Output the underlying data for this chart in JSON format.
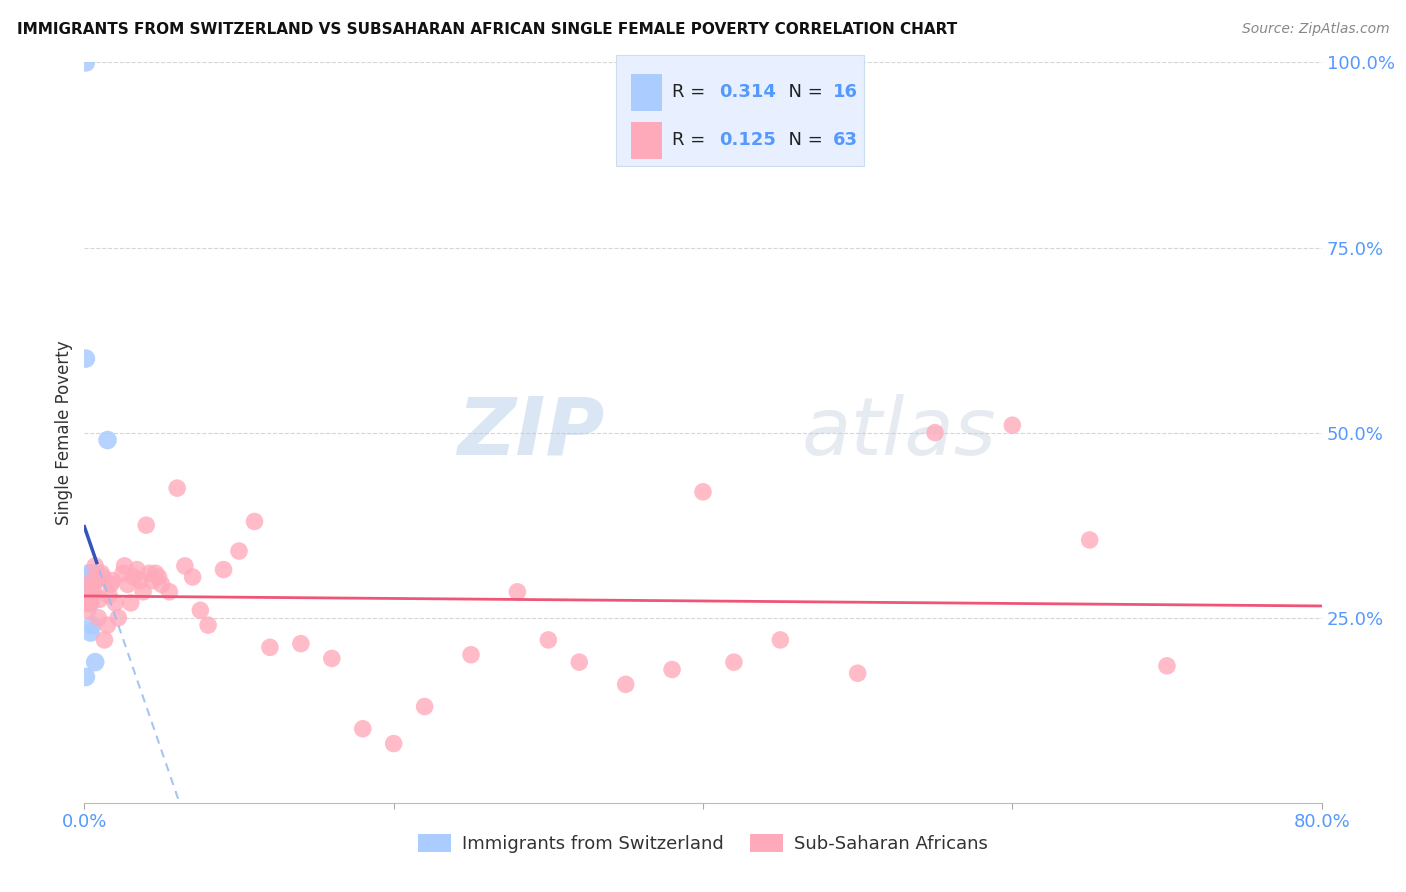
{
  "title": "IMMIGRANTS FROM SWITZERLAND VS SUBSAHARAN AFRICAN SINGLE FEMALE POVERTY CORRELATION CHART",
  "source": "Source: ZipAtlas.com",
  "ylabel": "Single Female Poverty",
  "xlim": [
    0.0,
    0.8
  ],
  "ylim": [
    0.0,
    1.0
  ],
  "R_blue": 0.314,
  "N_blue": 16,
  "R_pink": 0.125,
  "N_pink": 63,
  "blue_dot_color": "#aaccff",
  "blue_line_color": "#3355bb",
  "blue_dash_color": "#99bbee",
  "pink_dot_color": "#ffaabb",
  "pink_line_color": "#ee5577",
  "label_color": "#5599ff",
  "grid_color": "#cccccc",
  "watermark": "ZIPatlas",
  "watermark_color": "#c8d8ef",
  "blue_scatter_x": [
    0.001,
    0.001,
    0.001,
    0.002,
    0.002,
    0.003,
    0.003,
    0.004,
    0.004,
    0.004,
    0.005,
    0.005,
    0.005,
    0.006,
    0.007,
    0.015
  ],
  "blue_scatter_y": [
    1.0,
    0.6,
    0.17,
    0.3,
    0.27,
    0.31,
    0.29,
    0.305,
    0.27,
    0.23,
    0.31,
    0.28,
    0.24,
    0.3,
    0.19,
    0.49
  ],
  "pink_scatter_x": [
    0.001,
    0.002,
    0.003,
    0.004,
    0.005,
    0.005,
    0.006,
    0.007,
    0.008,
    0.009,
    0.01,
    0.011,
    0.012,
    0.013,
    0.015,
    0.016,
    0.017,
    0.018,
    0.02,
    0.022,
    0.025,
    0.026,
    0.028,
    0.03,
    0.032,
    0.034,
    0.036,
    0.038,
    0.04,
    0.042,
    0.044,
    0.046,
    0.048,
    0.05,
    0.055,
    0.06,
    0.065,
    0.07,
    0.075,
    0.08,
    0.09,
    0.1,
    0.11,
    0.12,
    0.14,
    0.16,
    0.18,
    0.2,
    0.22,
    0.25,
    0.28,
    0.3,
    0.32,
    0.35,
    0.38,
    0.4,
    0.42,
    0.45,
    0.5,
    0.55,
    0.6,
    0.65,
    0.7
  ],
  "pink_scatter_y": [
    0.27,
    0.26,
    0.29,
    0.27,
    0.3,
    0.28,
    0.285,
    0.32,
    0.3,
    0.25,
    0.275,
    0.31,
    0.305,
    0.22,
    0.24,
    0.28,
    0.295,
    0.3,
    0.27,
    0.25,
    0.31,
    0.32,
    0.295,
    0.27,
    0.305,
    0.315,
    0.3,
    0.285,
    0.375,
    0.31,
    0.3,
    0.31,
    0.305,
    0.295,
    0.285,
    0.425,
    0.32,
    0.305,
    0.26,
    0.24,
    0.315,
    0.34,
    0.38,
    0.21,
    0.215,
    0.195,
    0.1,
    0.08,
    0.13,
    0.2,
    0.285,
    0.22,
    0.19,
    0.16,
    0.18,
    0.42,
    0.19,
    0.22,
    0.175,
    0.5,
    0.51,
    0.355,
    0.185
  ]
}
